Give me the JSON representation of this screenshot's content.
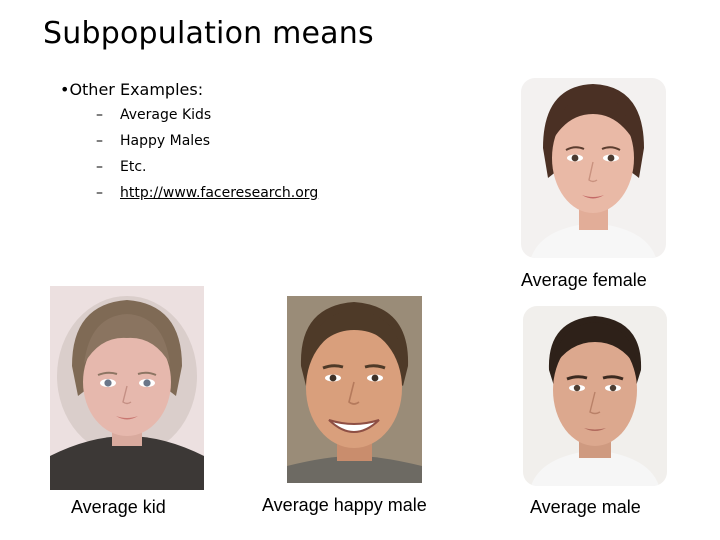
{
  "slide": {
    "title": "Subpopulation means",
    "bullet": "•Other Examples:",
    "dash": "–",
    "items": [
      "Average Kids",
      "Happy Males",
      "Etc.",
      "http://www.faceresearch.org"
    ]
  },
  "captions": {
    "female": "Average female",
    "kid": "Average kid",
    "happy_male": "Average happy male",
    "male": "Average male"
  },
  "colors": {
    "skin_female": "#e9b9a6",
    "skin_kid": "#e6b8ad",
    "skin_happy": "#d99f7c",
    "skin_male": "#dca88e",
    "hair_female": "#4a3024",
    "hair_kid": "#7f6a55",
    "hair_happy": "#4e3a28",
    "hair_male": "#2e2119"
  }
}
